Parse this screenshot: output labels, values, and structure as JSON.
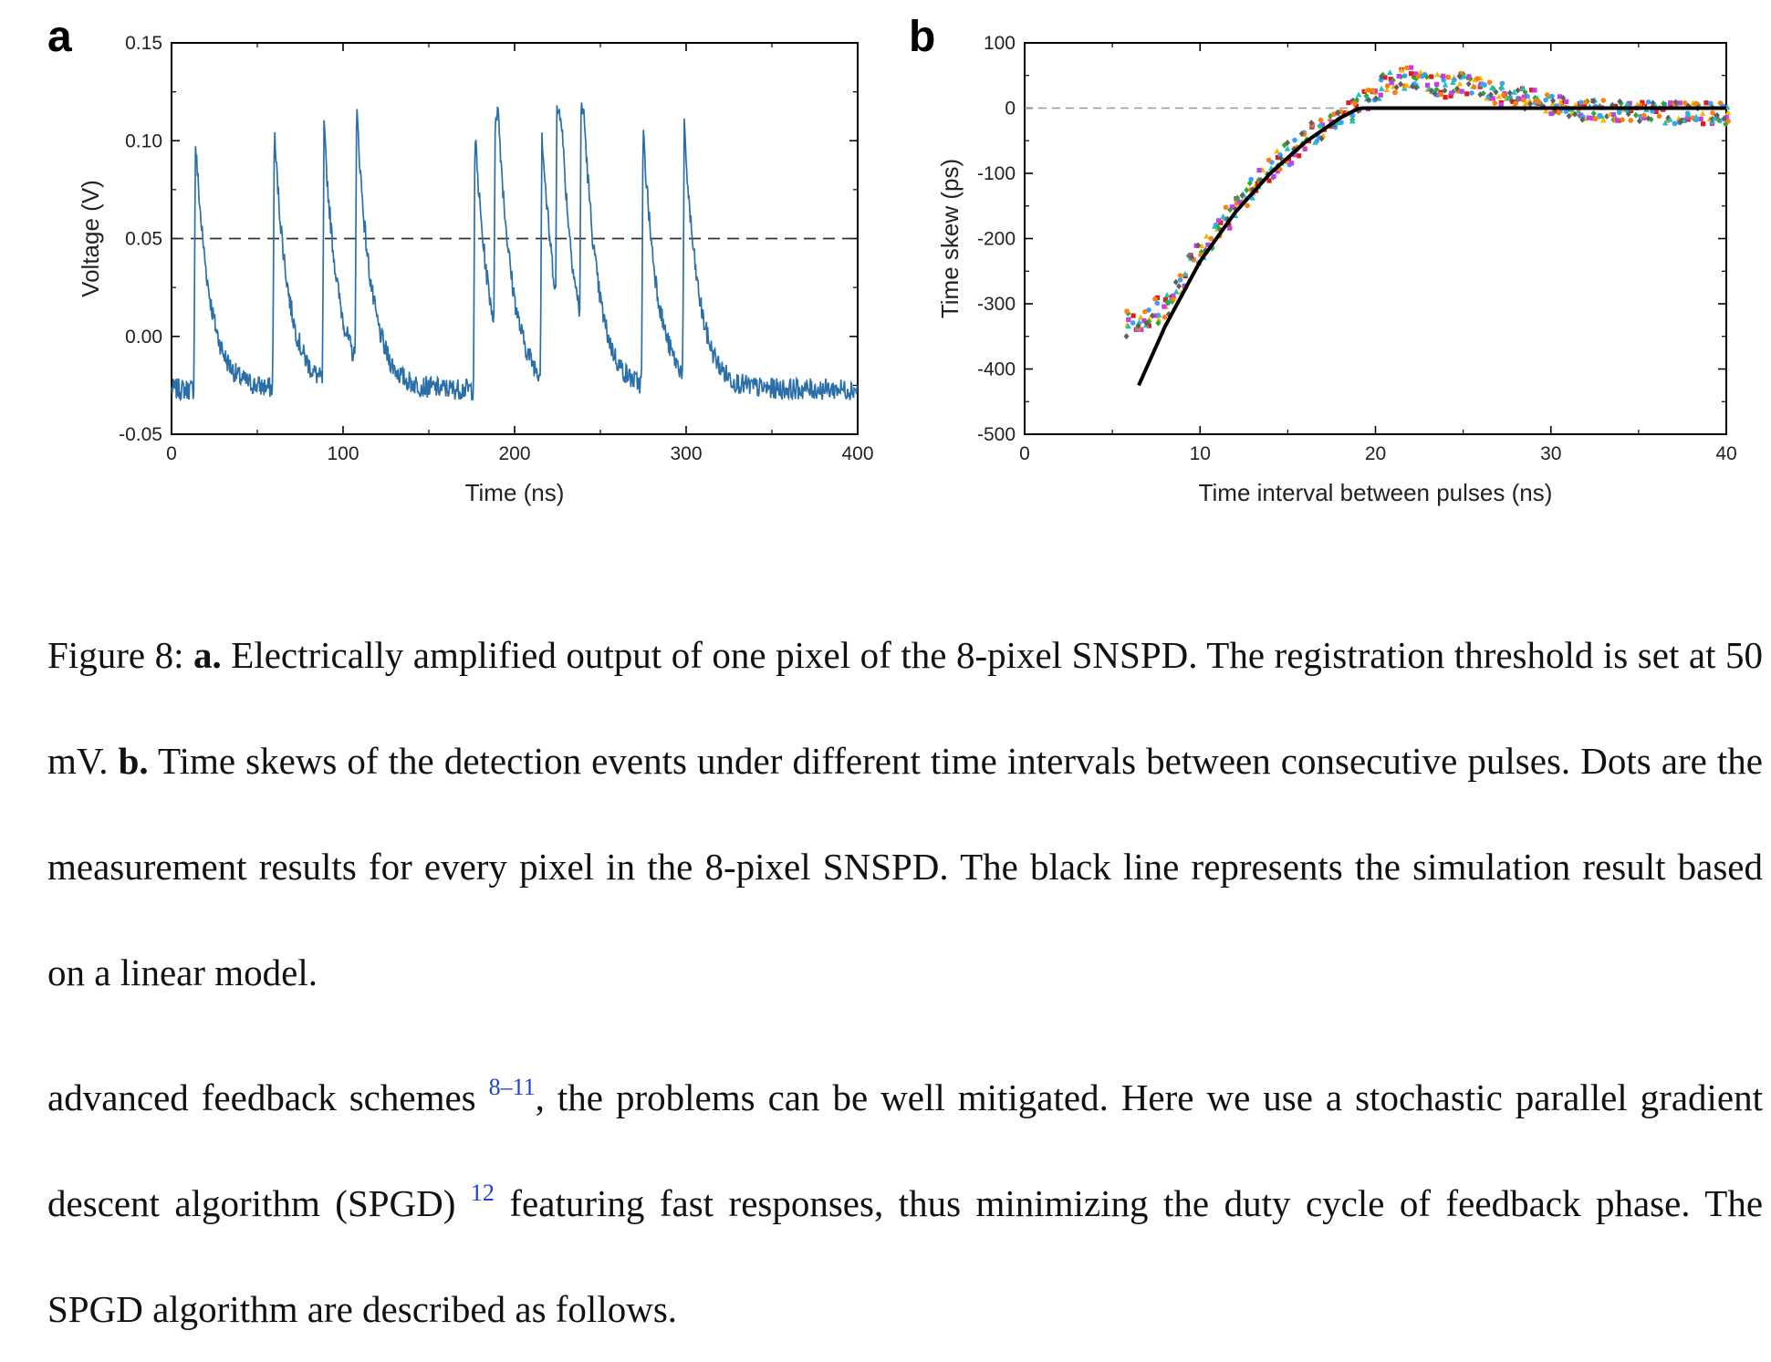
{
  "chart_data": [
    {
      "type": "line",
      "panel": "a",
      "xlabel": "Time (ns)",
      "ylabel": "Voltage (V)",
      "xlim": [
        0,
        400
      ],
      "ylim": [
        -0.05,
        0.15
      ],
      "xticks": [
        "0",
        "100",
        "200",
        "300",
        "400"
      ],
      "yticks": [
        "-0.05",
        "0.00",
        "0.05",
        "0.10",
        "0.15"
      ],
      "threshold": 0.05,
      "baseline": -0.027,
      "pulses": [
        {
          "t": 13,
          "peak": 0.1
        },
        {
          "t": 59,
          "peak": 0.104
        },
        {
          "t": 88,
          "peak": 0.102
        },
        {
          "t": 107,
          "peak": 0.103
        },
        {
          "t": 176,
          "peak": 0.104
        },
        {
          "t": 188,
          "peak": 0.112
        },
        {
          "t": 215,
          "peak": 0.098
        },
        {
          "t": 224,
          "peak": 0.111
        },
        {
          "t": 238,
          "peak": 0.107
        },
        {
          "t": 274,
          "peak": 0.104
        },
        {
          "t": 298,
          "peak": 0.098
        }
      ],
      "color": "#2b6fa8",
      "grid": false
    },
    {
      "type": "scatter",
      "panel": "b",
      "xlabel": "Time interval between pulses (ns)",
      "ylabel": "Time skew (ps)",
      "xlim": [
        0,
        40
      ],
      "ylim": [
        -500,
        100
      ],
      "xticks": [
        "0",
        "10",
        "20",
        "30",
        "40"
      ],
      "yticks": [
        "-500",
        "-400",
        "-300",
        "-200",
        "-100",
        "0",
        "100"
      ],
      "reference_line": 0,
      "simulation": {
        "color": "#000000",
        "x": [
          6.5,
          8,
          10,
          12,
          14,
          16,
          18,
          19,
          19.3,
          40
        ],
        "y": [
          -425,
          -335,
          -235,
          -160,
          -100,
          -52,
          -15,
          -1,
          0,
          0
        ]
      },
      "series_colors": [
        "#e01a1a",
        "#f5b800",
        "#3aa0ff",
        "#2ea82e",
        "#c040e0",
        "#20c0c0",
        "#ff7f0e",
        "#606060"
      ],
      "scatter_points": {
        "x": [
          6,
          6.5,
          7,
          7.5,
          8,
          8.5,
          9,
          9.5,
          10,
          10.5,
          11,
          11.5,
          12,
          12.5,
          13,
          13.5,
          14,
          14.5,
          15,
          15.5,
          16,
          16.5,
          17,
          17.5,
          18,
          18.5,
          19,
          19.5,
          20,
          20.5,
          21,
          21.5,
          22,
          22.5,
          23,
          23.5,
          24,
          24.5,
          25,
          25.5,
          26,
          26.5,
          27,
          27.5,
          28,
          28.5,
          29,
          29.5,
          30,
          30.5,
          31,
          31.5,
          32,
          32.5,
          33,
          33.5,
          34,
          34.5,
          35,
          35.5,
          36,
          36.5,
          37,
          37.5,
          38,
          38.5,
          39,
          39.5,
          40
        ],
        "y": [
          -330,
          -320,
          -315,
          -310,
          -305,
          -285,
          -265,
          -245,
          -225,
          -205,
          -185,
          -168,
          -152,
          -138,
          -122,
          -108,
          -95,
          -82,
          -70,
          -58,
          -48,
          -38,
          -30,
          -22,
          -12,
          -5,
          5,
          15,
          25,
          35,
          40,
          45,
          48,
          42,
          38,
          35,
          33,
          35,
          38,
          35,
          30,
          25,
          22,
          20,
          18,
          15,
          12,
          10,
          8,
          5,
          2,
          0,
          -2,
          -3,
          -4,
          -5,
          -5,
          -6,
          -6,
          -6,
          -7,
          -7,
          -7,
          -7,
          -8,
          -8,
          -8,
          -8,
          -8
        ]
      }
    }
  ],
  "caption": {
    "label": "Figure 8:",
    "a_label": "a.",
    "a_text": "Electrically amplified output of one pixel of the 8-pixel SNSPD. The registration threshold is set at 50 mV.",
    "b_label": "b.",
    "b_text": "Time skews of the detection events under different time intervals between consecutive pulses. Dots are the measurement results for every pixel in the 8-pixel SNSPD. The black line represents the simulation result based on a linear model."
  },
  "body": {
    "part1": "advanced feedback schemes",
    "cite1": "8–11",
    "part2": ", the problems can be well mitigated.  Here we use a stochastic parallel gradient descent algorithm (SPGD)",
    "cite2": "12",
    "part3": "featuring fast responses, thus minimizing the duty cycle of feedback phase. The SPGD algorithm are described as follows."
  }
}
